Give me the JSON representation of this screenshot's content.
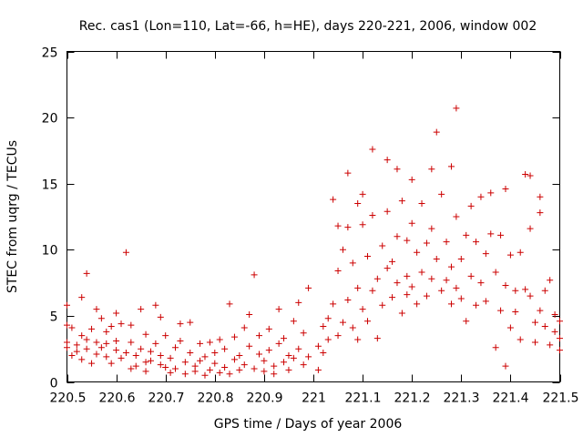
{
  "chart_data": {
    "type": "scatter",
    "title": "Rec. cas1 (Lon=110, Lat=-66, h=HE), days 220-221, 2006, window 002",
    "xlabel": "GPS time / Days of year 2006",
    "ylabel": "STEC from uqrg / TECUs",
    "xlim": [
      220.5,
      221.5
    ],
    "ylim": [
      0,
      25
    ],
    "x_ticks": [
      220.5,
      220.6,
      220.7,
      220.8,
      220.9,
      221.0,
      221.1,
      221.2,
      221.3,
      221.4,
      221.5
    ],
    "x_tick_labels": [
      "220.5",
      "220.6",
      "220.7",
      "220.8",
      "220.9",
      "221",
      "221.1",
      "221.2",
      "221.3",
      "221.4",
      "221.5"
    ],
    "y_ticks": [
      0,
      5,
      10,
      15,
      20,
      25
    ],
    "y_tick_labels": [
      "0",
      "5",
      "10",
      "15",
      "20",
      "25"
    ],
    "grid": false,
    "marker": "plus",
    "color": "#cc0000",
    "series": [
      {
        "name": "STEC",
        "points": [
          [
            220.5,
            4.3
          ],
          [
            220.5,
            3.0
          ],
          [
            220.5,
            2.6
          ],
          [
            220.5,
            5.8
          ],
          [
            220.51,
            2.0
          ],
          [
            220.51,
            4.1
          ],
          [
            220.52,
            2.8
          ],
          [
            220.52,
            2.3
          ],
          [
            220.53,
            3.5
          ],
          [
            220.53,
            6.4
          ],
          [
            220.53,
            1.7
          ],
          [
            220.54,
            8.2
          ],
          [
            220.54,
            3.2
          ],
          [
            220.54,
            2.5
          ],
          [
            220.55,
            1.4
          ],
          [
            220.55,
            4.0
          ],
          [
            220.56,
            5.5
          ],
          [
            220.56,
            3.0
          ],
          [
            220.56,
            2.1
          ],
          [
            220.57,
            4.8
          ],
          [
            220.57,
            2.6
          ],
          [
            220.58,
            3.8
          ],
          [
            220.58,
            1.9
          ],
          [
            220.58,
            2.9
          ],
          [
            220.59,
            1.4
          ],
          [
            220.59,
            4.2
          ],
          [
            220.6,
            5.2
          ],
          [
            220.6,
            2.4
          ],
          [
            220.6,
            3.1
          ],
          [
            220.61,
            4.4
          ],
          [
            220.61,
            1.8
          ],
          [
            220.62,
            2.2
          ],
          [
            220.62,
            9.8
          ],
          [
            220.63,
            4.3
          ],
          [
            220.63,
            1.0
          ],
          [
            220.63,
            3.0
          ],
          [
            220.64,
            2.0
          ],
          [
            220.64,
            1.2
          ],
          [
            220.65,
            5.5
          ],
          [
            220.65,
            2.5
          ],
          [
            220.66,
            3.6
          ],
          [
            220.66,
            1.5
          ],
          [
            220.66,
            0.8
          ],
          [
            220.67,
            2.3
          ],
          [
            220.67,
            1.6
          ],
          [
            220.68,
            5.8
          ],
          [
            220.68,
            2.9
          ],
          [
            220.69,
            4.9
          ],
          [
            220.69,
            1.3
          ],
          [
            220.69,
            2.0
          ],
          [
            220.7,
            1.1
          ],
          [
            220.7,
            3.5
          ],
          [
            220.71,
            0.7
          ],
          [
            220.71,
            1.8
          ],
          [
            220.72,
            2.6
          ],
          [
            220.72,
            1.0
          ],
          [
            220.73,
            3.1
          ],
          [
            220.73,
            4.4
          ],
          [
            220.74,
            1.5
          ],
          [
            220.74,
            0.6
          ],
          [
            220.75,
            4.5
          ],
          [
            220.75,
            2.2
          ],
          [
            220.76,
            1.2
          ],
          [
            220.76,
            0.8
          ],
          [
            220.77,
            2.9
          ],
          [
            220.77,
            1.6
          ],
          [
            220.78,
            0.5
          ],
          [
            220.78,
            1.9
          ],
          [
            220.79,
            3.0
          ],
          [
            220.79,
            0.9
          ],
          [
            220.8,
            1.4
          ],
          [
            220.8,
            2.2
          ],
          [
            220.81,
            0.7
          ],
          [
            220.81,
            3.2
          ],
          [
            220.82,
            1.1
          ],
          [
            220.82,
            2.5
          ],
          [
            220.83,
            0.6
          ],
          [
            220.83,
            5.9
          ],
          [
            220.84,
            1.7
          ],
          [
            220.84,
            3.4
          ],
          [
            220.85,
            0.9
          ],
          [
            220.85,
            2.0
          ],
          [
            220.86,
            4.1
          ],
          [
            220.86,
            1.3
          ],
          [
            220.87,
            2.7
          ],
          [
            220.87,
            5.1
          ],
          [
            220.88,
            1.0
          ],
          [
            220.88,
            8.1
          ],
          [
            220.89,
            3.5
          ],
          [
            220.89,
            2.1
          ],
          [
            220.9,
            0.8
          ],
          [
            220.9,
            1.6
          ],
          [
            220.91,
            4.0
          ],
          [
            220.91,
            2.4
          ],
          [
            220.92,
            1.2
          ],
          [
            220.92,
            0.6
          ],
          [
            220.93,
            2.9
          ],
          [
            220.93,
            5.5
          ],
          [
            220.94,
            1.5
          ],
          [
            220.94,
            3.3
          ],
          [
            220.95,
            2.0
          ],
          [
            220.95,
            0.9
          ],
          [
            220.96,
            4.6
          ],
          [
            220.96,
            1.8
          ],
          [
            220.97,
            6.0
          ],
          [
            220.97,
            2.5
          ],
          [
            220.98,
            1.3
          ],
          [
            220.98,
            3.7
          ],
          [
            220.99,
            7.1
          ],
          [
            220.99,
            1.9
          ],
          [
            221.01,
            0.9
          ],
          [
            221.01,
            2.7
          ],
          [
            221.02,
            4.2
          ],
          [
            221.02,
            2.2
          ],
          [
            221.03,
            3.2
          ],
          [
            221.03,
            4.8
          ],
          [
            221.04,
            13.8
          ],
          [
            221.04,
            5.9
          ],
          [
            221.05,
            8.4
          ],
          [
            221.05,
            11.8
          ],
          [
            221.05,
            3.5
          ],
          [
            221.06,
            10.0
          ],
          [
            221.06,
            4.5
          ],
          [
            221.07,
            15.8
          ],
          [
            221.07,
            11.7
          ],
          [
            221.07,
            6.2
          ],
          [
            221.08,
            9.0
          ],
          [
            221.08,
            4.1
          ],
          [
            221.09,
            7.1
          ],
          [
            221.09,
            13.5
          ],
          [
            221.09,
            3.2
          ],
          [
            221.1,
            14.2
          ],
          [
            221.1,
            11.9
          ],
          [
            221.1,
            5.5
          ],
          [
            221.11,
            9.5
          ],
          [
            221.11,
            4.6
          ],
          [
            221.12,
            12.6
          ],
          [
            221.12,
            6.9
          ],
          [
            221.12,
            17.6
          ],
          [
            221.13,
            7.8
          ],
          [
            221.13,
            3.3
          ],
          [
            221.14,
            10.3
          ],
          [
            221.14,
            5.8
          ],
          [
            221.15,
            16.8
          ],
          [
            221.15,
            8.6
          ],
          [
            221.15,
            12.9
          ],
          [
            221.16,
            6.4
          ],
          [
            221.16,
            9.1
          ],
          [
            221.17,
            16.1
          ],
          [
            221.17,
            11.0
          ],
          [
            221.17,
            7.5
          ],
          [
            221.18,
            13.7
          ],
          [
            221.18,
            5.2
          ],
          [
            221.19,
            8.0
          ],
          [
            221.19,
            10.7
          ],
          [
            221.19,
            6.6
          ],
          [
            221.2,
            15.3
          ],
          [
            221.2,
            12.0
          ],
          [
            221.2,
            7.2
          ],
          [
            221.21,
            9.8
          ],
          [
            221.21,
            5.9
          ],
          [
            221.22,
            13.5
          ],
          [
            221.22,
            8.3
          ],
          [
            221.23,
            10.5
          ],
          [
            221.23,
            6.5
          ],
          [
            221.24,
            16.1
          ],
          [
            221.24,
            11.6
          ],
          [
            221.24,
            7.8
          ],
          [
            221.25,
            18.9
          ],
          [
            221.25,
            9.3
          ],
          [
            221.26,
            14.2
          ],
          [
            221.26,
            6.9
          ],
          [
            221.27,
            10.6
          ],
          [
            221.27,
            7.7
          ],
          [
            221.28,
            16.3
          ],
          [
            221.28,
            8.7
          ],
          [
            221.28,
            5.9
          ],
          [
            221.29,
            12.5
          ],
          [
            221.29,
            7.1
          ],
          [
            221.29,
            20.7
          ],
          [
            221.3,
            9.3
          ],
          [
            221.3,
            6.3
          ],
          [
            221.31,
            11.1
          ],
          [
            221.31,
            4.6
          ],
          [
            221.32,
            13.3
          ],
          [
            221.32,
            8.0
          ],
          [
            221.33,
            10.6
          ],
          [
            221.33,
            5.8
          ],
          [
            221.34,
            14.0
          ],
          [
            221.34,
            7.5
          ],
          [
            221.35,
            9.7
          ],
          [
            221.35,
            6.1
          ],
          [
            221.36,
            11.2
          ],
          [
            221.36,
            14.3
          ],
          [
            221.37,
            8.3
          ],
          [
            221.37,
            2.6
          ],
          [
            221.38,
            5.4
          ],
          [
            221.38,
            11.1
          ],
          [
            221.39,
            14.6
          ],
          [
            221.39,
            1.2
          ],
          [
            221.39,
            7.3
          ],
          [
            221.4,
            9.6
          ],
          [
            221.4,
            4.1
          ],
          [
            221.41,
            6.9
          ],
          [
            221.41,
            5.3
          ],
          [
            221.42,
            9.8
          ],
          [
            221.42,
            3.2
          ],
          [
            221.43,
            15.7
          ],
          [
            221.43,
            7.0
          ],
          [
            221.44,
            15.6
          ],
          [
            221.44,
            11.6
          ],
          [
            221.44,
            6.5
          ],
          [
            221.45,
            4.5
          ],
          [
            221.45,
            3.0
          ],
          [
            221.46,
            14.0
          ],
          [
            221.46,
            12.8
          ],
          [
            221.46,
            5.4
          ],
          [
            221.47,
            6.9
          ],
          [
            221.47,
            4.2
          ],
          [
            221.48,
            7.7
          ],
          [
            221.48,
            2.8
          ],
          [
            221.49,
            5.1
          ],
          [
            221.49,
            3.8
          ],
          [
            221.5,
            4.6
          ],
          [
            221.5,
            2.4
          ],
          [
            221.5,
            3.3
          ]
        ]
      }
    ]
  }
}
